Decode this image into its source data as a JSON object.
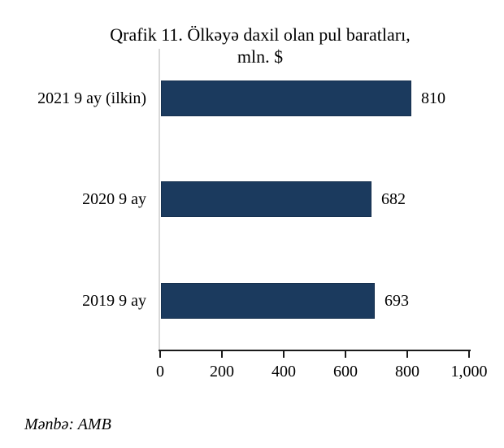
{
  "title": {
    "line1": "Qrafik 11. Ölkəyə daxil olan pul baratları,",
    "line2": "mln. $"
  },
  "source": "Mənbə: AMB",
  "colors": {
    "bar": "#1B3A5E",
    "bar_border": "#16304E",
    "y_axis_line": "#D9D9D9",
    "x_axis_line": "#1A1A1A",
    "text": "#000000"
  },
  "chart_data": {
    "type": "bar",
    "orientation": "horizontal",
    "title": "Qrafik 11. Ölkəyə daxil olan pul baratları, mln. $",
    "categories": [
      "2021 9 ay (ilkin)",
      "2020 9 ay",
      "2019 9 ay"
    ],
    "values": [
      810,
      682,
      693
    ],
    "value_labels": [
      "810",
      "682",
      "693"
    ],
    "xlim": [
      0,
      1000
    ],
    "x_ticks": [
      0,
      200,
      400,
      600,
      800,
      1000
    ],
    "x_tick_labels": [
      "0",
      "200",
      "400",
      "600",
      "800",
      "1,000"
    ],
    "xlabel": "",
    "ylabel": "",
    "grid": false,
    "legend": null,
    "annotations": [
      "Mənbə: AMB"
    ]
  }
}
